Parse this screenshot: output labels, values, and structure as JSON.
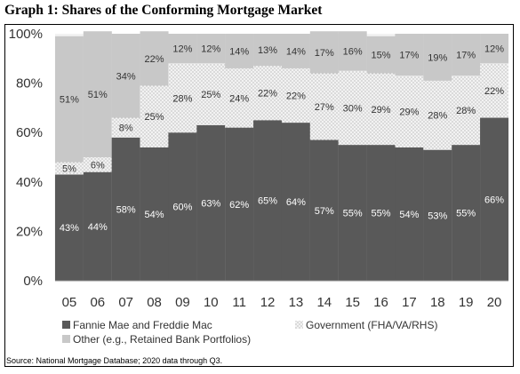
{
  "title": "Graph 1: Shares of the Conforming Mortgage Market",
  "source": "Source: National Mortgage Database; 2020 data through Q3.",
  "colors": {
    "fannie": "#595959",
    "government_bg": "#f2f2f2",
    "government_dot": "#7f7f7f",
    "other": "#c8c8c8",
    "plot_bg": "#f2f2f2"
  },
  "chart_data": {
    "type": "bar",
    "stacked": true,
    "categories": [
      "05",
      "06",
      "07",
      "08",
      "09",
      "10",
      "11",
      "12",
      "13",
      "14",
      "15",
      "16",
      "17",
      "18",
      "19",
      "20"
    ],
    "ylim": [
      0,
      100
    ],
    "yticks": [
      "0%",
      "20%",
      "40%",
      "60%",
      "80%",
      "100%"
    ],
    "grid": false,
    "legend_position": "bottom",
    "series": [
      {
        "name": "Fannie Mae and Freddie Mac",
        "values": [
          43,
          44,
          58,
          54,
          60,
          63,
          62,
          65,
          64,
          57,
          55,
          55,
          54,
          53,
          55,
          66
        ]
      },
      {
        "name": "Government (FHA/VA/RHS)",
        "values": [
          5,
          6,
          8,
          25,
          28,
          25,
          24,
          22,
          22,
          27,
          30,
          29,
          29,
          28,
          28,
          22
        ]
      },
      {
        "name": "Other (e.g., Retained Bank Portfolios)",
        "values": [
          51,
          51,
          34,
          22,
          12,
          12,
          14,
          13,
          14,
          17,
          16,
          15,
          17,
          19,
          17,
          12
        ]
      }
    ]
  }
}
